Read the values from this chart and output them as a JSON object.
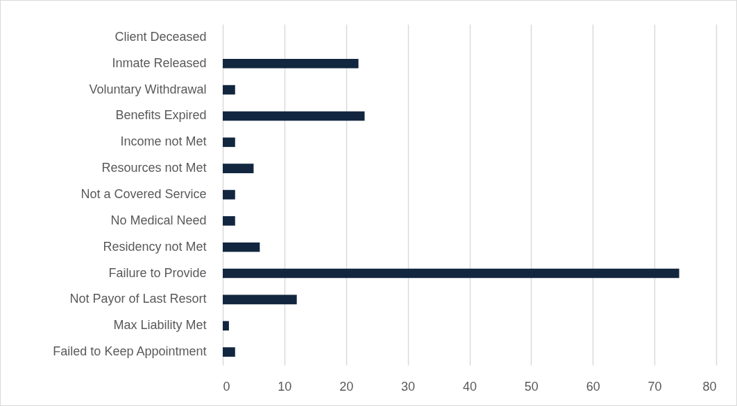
{
  "chart_data": {
    "type": "bar",
    "orientation": "horizontal",
    "categories": [
      "Client Deceased",
      "Inmate Released",
      "Voluntary Withdrawal",
      "Benefits Expired",
      "Income not Met",
      "Resources not Met",
      "Not a Covered Service",
      "No Medical Need",
      "Residency not Met",
      "Failure to Provide",
      "Not Payor of Last Resort",
      "Max Liability Met",
      "Failed to Keep Appointment"
    ],
    "values": [
      0,
      22,
      2,
      23,
      2,
      5,
      2,
      2,
      6,
      74,
      12,
      1,
      2
    ],
    "color": "#12263f",
    "xlim": [
      0,
      80
    ],
    "xticks": [
      0,
      10,
      20,
      30,
      40,
      50,
      60,
      70,
      80
    ],
    "grid": "x"
  }
}
